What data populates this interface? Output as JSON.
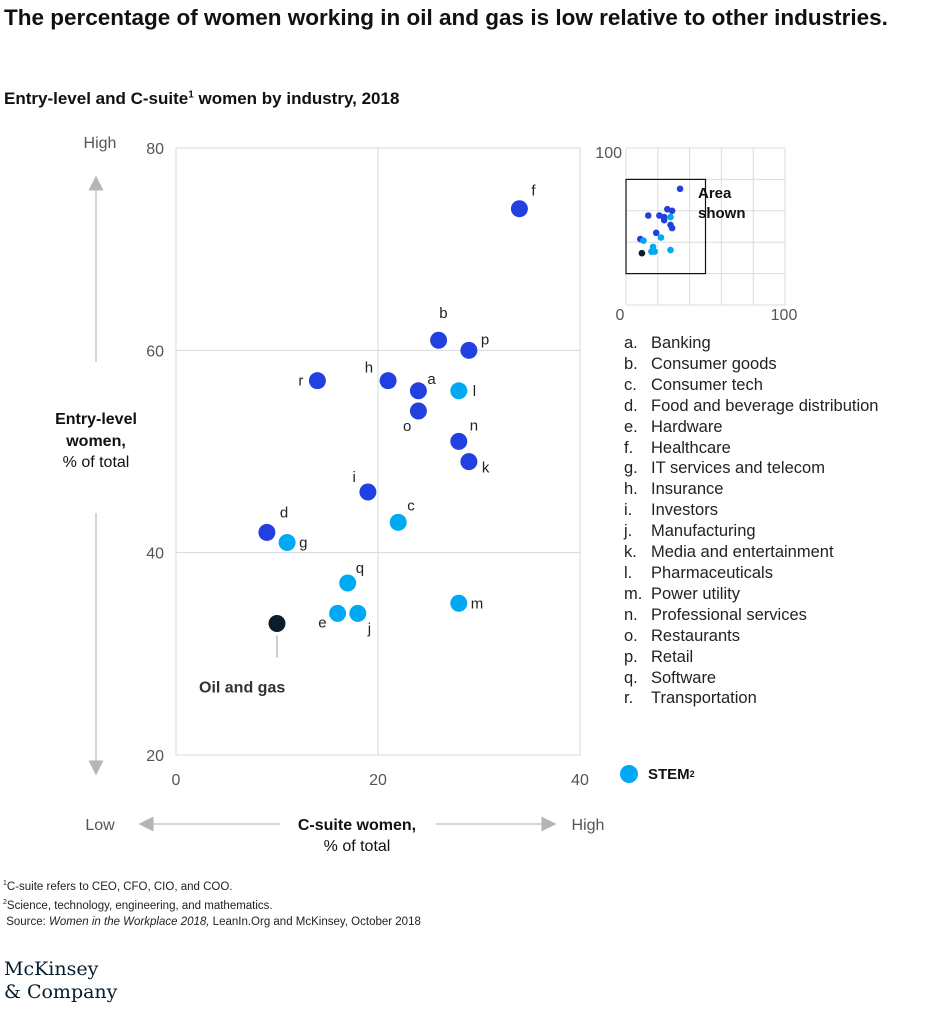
{
  "title": "The percentage of women working in oil and gas is low relative to other industries.",
  "subtitle_main": "Entry-level and C-suite",
  "subtitle_sup": "1",
  "subtitle_rest": " women by industry, 2018",
  "colors": {
    "industry": "#2240e0",
    "stem": "#00a9f4",
    "oil_and_gas": "#0b1c2c",
    "grid": "#d9d9d9"
  },
  "chart_data": {
    "type": "scatter",
    "xlabel_line1": "C-suite women,",
    "xlabel_line2": "% of total",
    "ylabel_line1": "Entry-level",
    "ylabel_line2": "women,",
    "ylabel_line3": "% of total",
    "xlim": [
      0,
      40
    ],
    "ylim": [
      20,
      80
    ],
    "x_ticks": [
      0,
      20,
      40
    ],
    "y_ticks": [
      20,
      40,
      60,
      80
    ],
    "x_low": "Low",
    "x_high": "High",
    "y_high": "High",
    "grid": true,
    "points": [
      {
        "label": "a",
        "x": 24,
        "y": 56,
        "group": "industry"
      },
      {
        "label": "b",
        "x": 26,
        "y": 61,
        "group": "industry"
      },
      {
        "label": "c",
        "x": 22,
        "y": 43,
        "group": "stem"
      },
      {
        "label": "d",
        "x": 9,
        "y": 42,
        "group": "industry"
      },
      {
        "label": "e",
        "x": 16,
        "y": 34,
        "group": "stem"
      },
      {
        "label": "f",
        "x": 34,
        "y": 74,
        "group": "industry"
      },
      {
        "label": "g",
        "x": 11,
        "y": 41,
        "group": "stem"
      },
      {
        "label": "h",
        "x": 21,
        "y": 57,
        "group": "industry"
      },
      {
        "label": "i",
        "x": 19,
        "y": 46,
        "group": "industry"
      },
      {
        "label": "j",
        "x": 18,
        "y": 34,
        "group": "stem"
      },
      {
        "label": "k",
        "x": 29,
        "y": 49,
        "group": "industry"
      },
      {
        "label": "l",
        "x": 28,
        "y": 56,
        "group": "stem"
      },
      {
        "label": "m",
        "x": 28,
        "y": 35,
        "group": "stem"
      },
      {
        "label": "n",
        "x": 28,
        "y": 51,
        "group": "industry"
      },
      {
        "label": "o",
        "x": 24,
        "y": 54,
        "group": "industry"
      },
      {
        "label": "p",
        "x": 29,
        "y": 60,
        "group": "industry"
      },
      {
        "label": "q",
        "x": 17,
        "y": 37,
        "group": "stem"
      },
      {
        "label": "r",
        "x": 14,
        "y": 57,
        "group": "industry"
      },
      {
        "label": "",
        "x": 10,
        "y": 33,
        "group": "oil_and_gas"
      }
    ],
    "annotation": "Oil and gas",
    "inset": {
      "xlim": [
        0,
        100
      ],
      "ylim": [
        0,
        100
      ],
      "tick_labels_y": [
        "100"
      ],
      "tick_labels_x": [
        "0",
        "100"
      ],
      "area_label_line1": "Area",
      "area_label_line2": "shown",
      "area_box": {
        "x": [
          0,
          50
        ],
        "y": [
          20,
          80
        ]
      }
    }
  },
  "legend": [
    {
      "letter": "a.",
      "name": "Banking"
    },
    {
      "letter": "b.",
      "name": "Consumer goods"
    },
    {
      "letter": "c.",
      "name": "Consumer tech"
    },
    {
      "letter": "d.",
      "name": "Food and beverage distribution"
    },
    {
      "letter": "e.",
      "name": "Hardware"
    },
    {
      "letter": "f.",
      "name": "Healthcare"
    },
    {
      "letter": "g.",
      "name": "IT services and telecom"
    },
    {
      "letter": "h.",
      "name": "Insurance"
    },
    {
      "letter": "i.",
      "name": "Investors"
    },
    {
      "letter": "j.",
      "name": "Manufacturing"
    },
    {
      "letter": "k.",
      "name": "Media and entertainment"
    },
    {
      "letter": "l.",
      "name": "Pharmaceuticals"
    },
    {
      "letter": "m.",
      "name": "Power utility"
    },
    {
      "letter": "n.",
      "name": "Professional services"
    },
    {
      "letter": "o.",
      "name": "Restaurants"
    },
    {
      "letter": "p.",
      "name": "Retail"
    },
    {
      "letter": "q.",
      "name": "Software"
    },
    {
      "letter": "r.",
      "name": "Transportation"
    }
  ],
  "stem_label": "STEM",
  "stem_sup": "2",
  "footnotes": {
    "note1_sup": "1",
    "note1": "C-suite refers to CEO, CFO, CIO, and COO.",
    "note2_sup": "2",
    "note2": "Science, technology, engineering, and mathematics.",
    "source_prefix": "Source: ",
    "source_italic": "Women in the Workplace 2018,",
    "source_rest": " LeanIn.Org and McKinsey, October 2018"
  },
  "logo_line1": "McKinsey",
  "logo_line2": "& Company"
}
